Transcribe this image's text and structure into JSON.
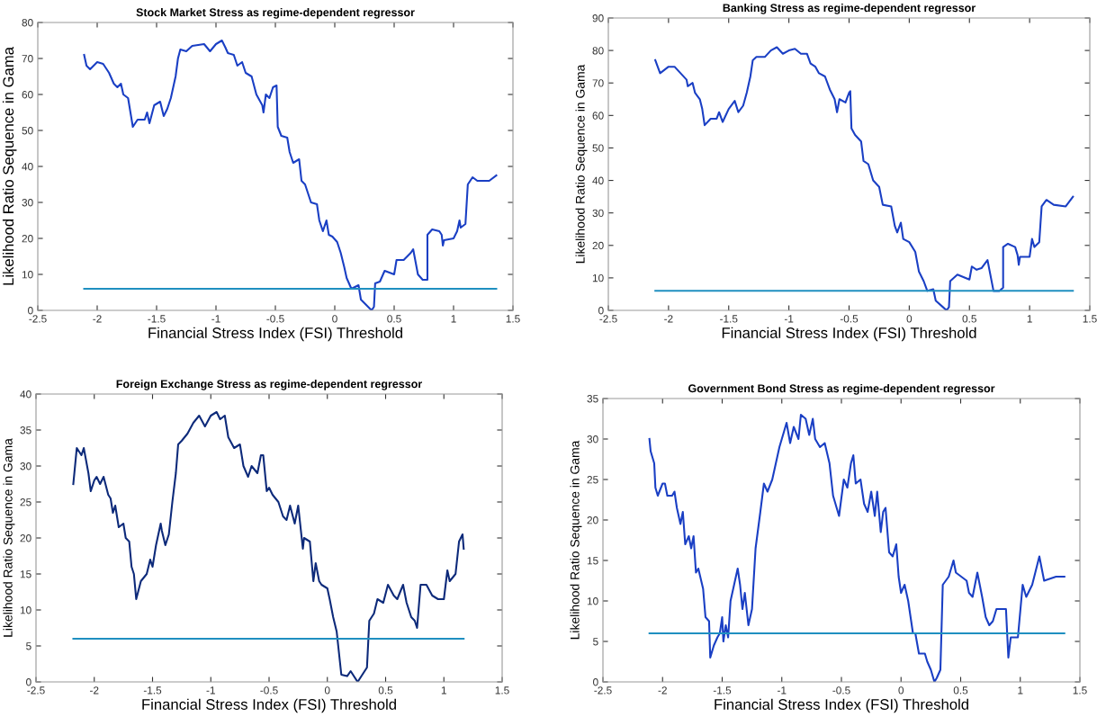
{
  "chart_data": [
    {
      "type": "line",
      "title": "Stock Market Stress as regime-dependent regressor",
      "xlabel": "Financial Stress Index (FSI) Threshold",
      "ylabel": "Likelihood Ratio Sequence in Gama",
      "xlim": [
        -2.5,
        1.5
      ],
      "xticks": [
        -2.5,
        -2,
        -1.5,
        -1,
        -0.5,
        0,
        0.5,
        1,
        1.5
      ],
      "ylim": [
        0,
        80
      ],
      "yticks": [
        0,
        10,
        20,
        30,
        40,
        50,
        60,
        70,
        80
      ],
      "series": [
        {
          "color": "#1a3fc4",
          "x": [
            -2.11,
            -2.09,
            -2.06,
            -2.0,
            -1.95,
            -1.9,
            -1.86,
            -1.83,
            -1.8,
            -1.78,
            -1.74,
            -1.72,
            -1.7,
            -1.66,
            -1.6,
            -1.58,
            -1.56,
            -1.52,
            -1.47,
            -1.44,
            -1.41,
            -1.38,
            -1.34,
            -1.32,
            -1.3,
            -1.25,
            -1.2,
            -1.1,
            -1.05,
            -1.0,
            -0.95,
            -0.92,
            -0.9,
            -0.85,
            -0.82,
            -0.78,
            -0.75,
            -0.7,
            -0.66,
            -0.61,
            -0.6,
            -0.58,
            -0.55,
            -0.52,
            -0.49,
            -0.48,
            -0.45,
            -0.4,
            -0.38,
            -0.35,
            -0.3,
            -0.28,
            -0.25,
            -0.2,
            -0.15,
            -0.13,
            -0.1,
            -0.07,
            -0.05,
            -0.02,
            0.02,
            0.05,
            0.08,
            0.1,
            0.14,
            0.2,
            0.22,
            0.28,
            0.31,
            0.33,
            0.34,
            0.38,
            0.42,
            0.5,
            0.52,
            0.58,
            0.64,
            0.66,
            0.7,
            0.74,
            0.78,
            0.78,
            0.82,
            0.88,
            0.9,
            0.91,
            0.92,
            1.0,
            1.03,
            1.05,
            1.06,
            1.1,
            1.12,
            1.16,
            1.2,
            1.3,
            1.36
          ],
          "values": [
            71,
            68,
            67,
            69,
            68.5,
            66,
            63,
            62,
            63,
            60,
            59,
            55,
            51,
            53,
            53,
            55,
            52,
            57,
            58,
            54,
            56,
            59,
            65,
            70,
            72.5,
            72,
            73.5,
            74,
            72,
            74,
            75,
            73,
            71.5,
            71,
            68,
            69,
            66,
            65,
            60,
            57,
            55,
            60,
            59,
            62,
            62.5,
            51,
            48.5,
            48,
            44,
            41,
            42,
            36,
            35,
            30,
            29.5,
            25,
            22,
            25,
            21,
            20.5,
            19,
            16,
            12,
            9,
            6,
            7,
            3,
            1,
            0,
            1,
            7.5,
            8,
            11,
            10,
            14,
            14,
            16,
            17,
            10,
            8.5,
            8.5,
            21,
            22.5,
            22,
            21,
            18,
            19.5,
            20,
            22,
            25,
            23,
            24,
            35,
            37,
            36,
            36,
            37.5
          ]
        },
        {
          "color": "#1f8fc0",
          "x": [
            -2.11,
            1.36
          ],
          "values": [
            6,
            6
          ]
        }
      ]
    },
    {
      "type": "line",
      "title": "Banking Stress as regime-dependent regressor",
      "xlabel": "Financial Stress Index (FSI) Threshold",
      "ylabel": "Likelihood Ratio Sequence in Gama",
      "xlim": [
        -2.5,
        1.5
      ],
      "xticks": [
        -2.5,
        -2,
        -1.5,
        -1,
        -0.5,
        0,
        0.5,
        1,
        1.5
      ],
      "ylim": [
        0,
        90
      ],
      "yticks": [
        0,
        10,
        20,
        30,
        40,
        50,
        60,
        70,
        80,
        90
      ],
      "series": [
        {
          "color": "#1a3fc4",
          "x": [
            -2.11,
            -2.09,
            -2.07,
            -2.0,
            -1.95,
            -1.9,
            -1.85,
            -1.84,
            -1.8,
            -1.78,
            -1.74,
            -1.72,
            -1.7,
            -1.65,
            -1.6,
            -1.58,
            -1.55,
            -1.5,
            -1.45,
            -1.42,
            -1.38,
            -1.35,
            -1.32,
            -1.3,
            -1.27,
            -1.2,
            -1.15,
            -1.1,
            -1.05,
            -1.0,
            -0.95,
            -0.9,
            -0.85,
            -0.82,
            -0.78,
            -0.75,
            -0.7,
            -0.66,
            -0.62,
            -0.6,
            -0.58,
            -0.53,
            -0.5,
            -0.49,
            -0.48,
            -0.45,
            -0.4,
            -0.38,
            -0.34,
            -0.3,
            -0.25,
            -0.22,
            -0.15,
            -0.12,
            -0.1,
            -0.07,
            -0.05,
            0.0,
            0.05,
            0.08,
            0.12,
            0.15,
            0.2,
            0.22,
            0.28,
            0.31,
            0.33,
            0.34,
            0.4,
            0.5,
            0.52,
            0.56,
            0.6,
            0.65,
            0.7,
            0.75,
            0.78,
            0.78,
            0.82,
            0.88,
            0.9,
            0.91,
            0.92,
            1.0,
            1.02,
            1.04,
            1.08,
            1.1,
            1.14,
            1.2,
            1.3,
            1.36
          ],
          "values": [
            77,
            75,
            73,
            75,
            75,
            73,
            71,
            69,
            70,
            67,
            65,
            62,
            57,
            59,
            59,
            61,
            58,
            62,
            64.5,
            61,
            63,
            67,
            72,
            77,
            78,
            78,
            80,
            81,
            79,
            80,
            80.5,
            79,
            79,
            76,
            75,
            73,
            72,
            68,
            65,
            61,
            65,
            64,
            67,
            67.5,
            56,
            54,
            52,
            46,
            45,
            40,
            38,
            32.5,
            32,
            26,
            24,
            27,
            22,
            21,
            18,
            12,
            9,
            6,
            6.5,
            3,
            1,
            0,
            1,
            9,
            11,
            9.5,
            13.5,
            12.5,
            13,
            15.5,
            6,
            6,
            7,
            19.5,
            20.5,
            19.5,
            17,
            14,
            16.5,
            16.5,
            22,
            19.5,
            21,
            32,
            34,
            32.5,
            32,
            35
          ]
        },
        {
          "color": "#1f8fc0",
          "x": [
            -2.11,
            1.36
          ],
          "values": [
            6,
            6
          ]
        }
      ]
    },
    {
      "type": "line",
      "title": "Foreign Exchange Stress as regime-dependent regressor",
      "xlabel": "Financial Stress Index (FSI) Threshold",
      "ylabel": "Likelihood Ratio Sequence in Gama",
      "xlim": [
        -2.5,
        1.5
      ],
      "xticks": [
        -2.5,
        -2,
        -1.5,
        -1,
        -0.5,
        0,
        0.5,
        1,
        1.5
      ],
      "ylim": [
        0,
        40
      ],
      "yticks": [
        0,
        5,
        10,
        15,
        20,
        25,
        30,
        35,
        40
      ],
      "series": [
        {
          "color": "#0d2a7a",
          "x": [
            -2.18,
            -2.15,
            -2.11,
            -2.09,
            -2.05,
            -2.03,
            -2.0,
            -1.98,
            -1.95,
            -1.92,
            -1.88,
            -1.86,
            -1.84,
            -1.82,
            -1.79,
            -1.75,
            -1.73,
            -1.7,
            -1.68,
            -1.66,
            -1.64,
            -1.6,
            -1.55,
            -1.52,
            -1.5,
            -1.47,
            -1.43,
            -1.42,
            -1.39,
            -1.36,
            -1.33,
            -1.3,
            -1.28,
            -1.25,
            -1.2,
            -1.15,
            -1.1,
            -1.05,
            -1.0,
            -0.95,
            -0.92,
            -0.88,
            -0.85,
            -0.8,
            -0.75,
            -0.72,
            -0.68,
            -0.65,
            -0.6,
            -0.57,
            -0.55,
            -0.52,
            -0.5,
            -0.47,
            -0.42,
            -0.38,
            -0.35,
            -0.32,
            -0.28,
            -0.25,
            -0.21,
            -0.2,
            -0.15,
            -0.12,
            -0.1,
            -0.07,
            -0.05,
            0.0,
            0.02,
            0.05,
            0.08,
            0.12,
            0.17,
            0.2,
            0.26,
            0.3,
            0.34,
            0.36,
            0.4,
            0.43,
            0.48,
            0.52,
            0.57,
            0.6,
            0.65,
            0.68,
            0.72,
            0.75,
            0.77,
            0.8,
            0.85,
            0.9,
            0.95,
            1.0,
            1.03,
            1.05,
            1.1,
            1.13,
            1.16,
            1.17
          ],
          "values": [
            27.5,
            32.5,
            31.5,
            32.5,
            29,
            26.5,
            28,
            28.5,
            27.5,
            28.5,
            26,
            25.5,
            23.5,
            24.5,
            21.5,
            22,
            20,
            19.5,
            16,
            15,
            11.5,
            14,
            15,
            17,
            16,
            19,
            22,
            21,
            19,
            20.5,
            25,
            29,
            33,
            33.5,
            34.5,
            36,
            37,
            35.5,
            37,
            37.5,
            36.5,
            37,
            34,
            32.5,
            33,
            30,
            28.5,
            30,
            29,
            31.5,
            31.5,
            26.5,
            27,
            26,
            25,
            23,
            22.5,
            24.5,
            22,
            24.5,
            18.5,
            20,
            19.5,
            14,
            16.5,
            14,
            13.5,
            13,
            11.5,
            9,
            7,
            1,
            0.8,
            1.5,
            0,
            1,
            2,
            8.5,
            9.5,
            11.5,
            11,
            13.5,
            12,
            11.5,
            13.5,
            11,
            9,
            8.5,
            7.5,
            13.5,
            13.5,
            12,
            11.5,
            11.5,
            15.5,
            14,
            15,
            19.5,
            20.5,
            18.5
          ]
        },
        {
          "color": "#1f8fc0",
          "x": [
            -2.18,
            1.17
          ],
          "values": [
            6,
            6
          ]
        }
      ]
    },
    {
      "type": "line",
      "title": "Government Bond Stress as regime-dependent regressor",
      "xlabel": "Financial Stress Index (FSI) Threshold",
      "ylabel": "Likelihood Ratio Sequence in Gama",
      "xlim": [
        -2.5,
        1.5
      ],
      "xticks": [
        -2.5,
        -2,
        -1.5,
        -1,
        -0.5,
        0,
        0.5,
        1,
        1.5
      ],
      "ylim": [
        0,
        35
      ],
      "yticks": [
        0,
        5,
        10,
        15,
        20,
        25,
        30,
        35
      ],
      "series": [
        {
          "color": "#1a3fc4",
          "x": [
            -2.11,
            -2.1,
            -2.07,
            -2.06,
            -2.04,
            -2.0,
            -1.98,
            -1.96,
            -1.92,
            -1.9,
            -1.88,
            -1.85,
            -1.83,
            -1.81,
            -1.78,
            -1.76,
            -1.74,
            -1.72,
            -1.7,
            -1.66,
            -1.64,
            -1.61,
            -1.6,
            -1.57,
            -1.54,
            -1.52,
            -1.5,
            -1.49,
            -1.47,
            -1.45,
            -1.43,
            -1.4,
            -1.37,
            -1.35,
            -1.33,
            -1.31,
            -1.28,
            -1.25,
            -1.22,
            -1.18,
            -1.15,
            -1.12,
            -1.08,
            -1.05,
            -1.02,
            -0.98,
            -0.96,
            -0.93,
            -0.9,
            -0.86,
            -0.84,
            -0.8,
            -0.77,
            -0.74,
            -0.72,
            -0.68,
            -0.64,
            -0.6,
            -0.57,
            -0.52,
            -0.48,
            -0.45,
            -0.42,
            -0.4,
            -0.38,
            -0.34,
            -0.31,
            -0.28,
            -0.25,
            -0.22,
            -0.2,
            -0.17,
            -0.15,
            -0.13,
            -0.1,
            -0.07,
            -0.04,
            -0.02,
            0.0,
            0.03,
            0.06,
            0.08,
            0.1,
            0.12,
            0.15,
            0.2,
            0.22,
            0.25,
            0.28,
            0.3,
            0.33,
            0.35,
            0.4,
            0.44,
            0.46,
            0.55,
            0.57,
            0.6,
            0.64,
            0.68,
            0.71,
            0.74,
            0.77,
            0.8,
            0.88,
            0.9,
            0.92,
            0.98,
            1.02,
            1.05,
            1.1,
            1.16,
            1.2,
            1.3,
            1.35,
            1.37
          ],
          "values": [
            30,
            28.5,
            27,
            24,
            23,
            24.5,
            24.5,
            23,
            23,
            23.5,
            21.5,
            19.5,
            21,
            17,
            18,
            16.5,
            18,
            13.5,
            14,
            11.5,
            8,
            7.5,
            3,
            4.5,
            5.5,
            6,
            8,
            5,
            7,
            5.5,
            10,
            12,
            14,
            12,
            9,
            11,
            7,
            9,
            16.5,
            21,
            24.5,
            23.5,
            25,
            27,
            29,
            31,
            32,
            29.5,
            31.5,
            30,
            33,
            32.5,
            30.5,
            32.5,
            30,
            29,
            29.5,
            27,
            23,
            20.5,
            25,
            24,
            27,
            28,
            24.5,
            25,
            22,
            21,
            23.5,
            20.5,
            23.5,
            18.5,
            21,
            21.5,
            16,
            15.5,
            17,
            13,
            11,
            12,
            10,
            8,
            6,
            6,
            3.5,
            3.5,
            2.5,
            1.5,
            0,
            0.5,
            1.5,
            12,
            13,
            15,
            13.5,
            12.5,
            11,
            10.5,
            13.5,
            10.5,
            8,
            7,
            7.5,
            9,
            9,
            3,
            5.5,
            5.5,
            12,
            10.5,
            12,
            15.5,
            12.5,
            13,
            13,
            13
          ]
        },
        {
          "color": "#1f8fc0",
          "x": [
            -2.11,
            1.37
          ],
          "values": [
            6,
            6
          ]
        }
      ]
    }
  ]
}
